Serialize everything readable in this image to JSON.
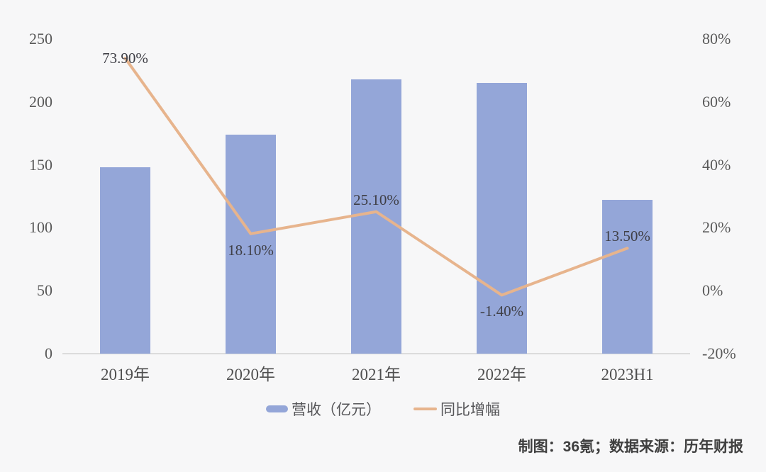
{
  "chart_data": {
    "type": "bar+line combo",
    "categories": [
      "2019年",
      "2020年",
      "2021年",
      "2022年",
      "2023H1"
    ],
    "series": [
      {
        "name": "营收（亿元）",
        "type": "bar",
        "axis": "left",
        "color": "#94a6d8",
        "values": [
          148,
          174,
          218,
          215,
          122
        ]
      },
      {
        "name": "同比增幅",
        "type": "line",
        "axis": "right",
        "color": "#e7b48d",
        "values": [
          73.9,
          18.1,
          25.1,
          -1.4,
          13.5
        ],
        "point_labels": [
          "73.90%",
          "18.10%",
          "25.10%",
          "-1.40%",
          "13.50%"
        ],
        "label_positions": [
          "center",
          "below",
          "above",
          "below",
          "above"
        ]
      }
    ],
    "left_axis": {
      "min": 0,
      "max": 250,
      "ticks": [
        "0",
        "50",
        "100",
        "150",
        "200",
        "250"
      ]
    },
    "right_axis": {
      "min": -20,
      "max": 80,
      "ticks": [
        "-20%",
        "0%",
        "20%",
        "40%",
        "60%",
        "80%"
      ]
    },
    "title": "",
    "grid": false,
    "legend_position": "bottom"
  },
  "legend": {
    "items": [
      {
        "label": "营收（亿元）",
        "swatch": "bar-swatch",
        "color": "#94a6d8"
      },
      {
        "label": "同比增幅",
        "swatch": "line-swatch",
        "color": "#e7b48d"
      }
    ]
  },
  "footer": {
    "credit": "制图：36氪；数据来源：历年财报"
  },
  "colors": {
    "background": "#f7f7f8",
    "axis_line": "#dcdcdc",
    "tick_text": "#595959",
    "value_label_text": "#3f3f46"
  }
}
